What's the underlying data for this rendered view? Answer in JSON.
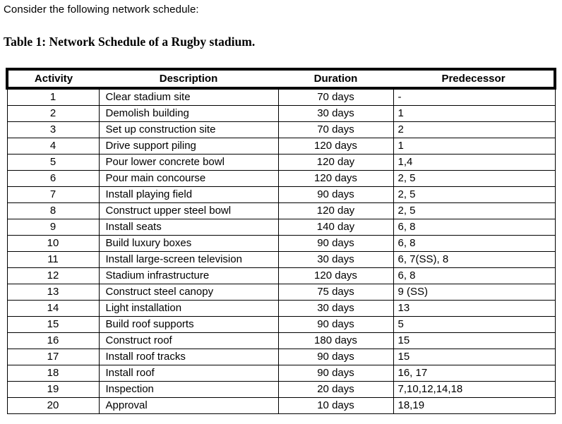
{
  "page": {
    "intro": "Consider the following network schedule:",
    "table_title": "Table 1: Network Schedule of a Rugby stadium."
  },
  "table": {
    "headers": [
      "Activity",
      "Description",
      "Duration",
      "Predecessor"
    ],
    "rows": [
      [
        "1",
        "Clear stadium site",
        "70 days",
        "-"
      ],
      [
        "2",
        "Demolish building",
        "30 days",
        "1"
      ],
      [
        "3",
        "Set up construction site",
        "70 days",
        "2"
      ],
      [
        "4",
        "Drive support piling",
        "120 days",
        "1"
      ],
      [
        "5",
        "Pour lower concrete bowl",
        "120 day",
        "1,4"
      ],
      [
        "6",
        "Pour main concourse",
        "120 days",
        "2, 5"
      ],
      [
        "7",
        "Install playing field",
        "90 days",
        "2, 5"
      ],
      [
        "8",
        "Construct upper steel bowl",
        "120 day",
        "2, 5"
      ],
      [
        "9",
        "Install seats",
        "140 day",
        "6, 8"
      ],
      [
        "10",
        "Build luxury boxes",
        "90 days",
        "6, 8"
      ],
      [
        "11",
        "Install large-screen television",
        "30 days",
        "6, 7(SS), 8"
      ],
      [
        "12",
        "Stadium infrastructure",
        "120 days",
        "6, 8"
      ],
      [
        "13",
        "Construct steel canopy",
        "75 days",
        "9 (SS)"
      ],
      [
        "14",
        "Light installation",
        "30 days",
        "13"
      ],
      [
        "15",
        "Build roof supports",
        "90 days",
        "5"
      ],
      [
        "16",
        "Construct roof",
        "180 days",
        "15"
      ],
      [
        "17",
        "Install roof tracks",
        "90 days",
        "15"
      ],
      [
        "18",
        "Install roof",
        "90 days",
        "16, 17"
      ],
      [
        "19",
        "Inspection",
        "20 days",
        "7,10,12,14,18"
      ],
      [
        "20",
        "Approval",
        "10 days",
        "18,19"
      ]
    ]
  }
}
